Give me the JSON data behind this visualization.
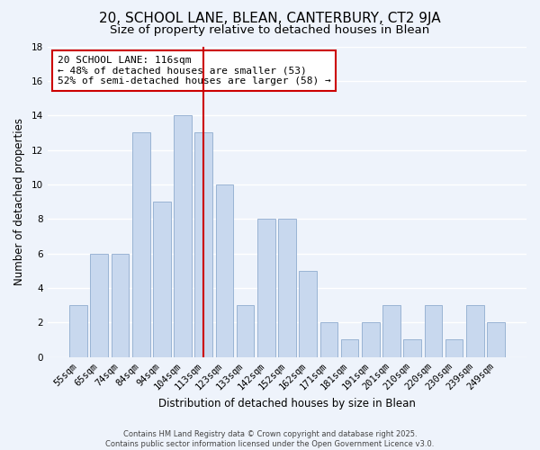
{
  "title": "20, SCHOOL LANE, BLEAN, CANTERBURY, CT2 9JA",
  "subtitle": "Size of property relative to detached houses in Blean",
  "xlabel": "Distribution of detached houses by size in Blean",
  "ylabel": "Number of detached properties",
  "categories": [
    "55sqm",
    "65sqm",
    "74sqm",
    "84sqm",
    "94sqm",
    "104sqm",
    "113sqm",
    "123sqm",
    "133sqm",
    "142sqm",
    "152sqm",
    "162sqm",
    "171sqm",
    "181sqm",
    "191sqm",
    "201sqm",
    "210sqm",
    "220sqm",
    "230sqm",
    "239sqm",
    "249sqm"
  ],
  "values": [
    3,
    6,
    6,
    13,
    9,
    14,
    13,
    10,
    3,
    8,
    8,
    5,
    2,
    1,
    2,
    3,
    1,
    3,
    1,
    3,
    2
  ],
  "bar_color": "#c8d8ee",
  "bar_edge_color": "#9ab4d4",
  "vline_index": 6,
  "vline_color": "#cc0000",
  "ylim": [
    0,
    18
  ],
  "yticks": [
    0,
    2,
    4,
    6,
    8,
    10,
    12,
    14,
    16,
    18
  ],
  "background_color": "#eef3fb",
  "grid_color": "#ffffff",
  "annotation_title": "20 SCHOOL LANE: 116sqm",
  "annotation_line1": "← 48% of detached houses are smaller (53)",
  "annotation_line2": "52% of semi-detached houses are larger (58) →",
  "annotation_box_facecolor": "#ffffff",
  "annotation_box_edgecolor": "#cc0000",
  "footer1": "Contains HM Land Registry data © Crown copyright and database right 2025.",
  "footer2": "Contains public sector information licensed under the Open Government Licence v3.0.",
  "title_fontsize": 11,
  "subtitle_fontsize": 9.5,
  "axis_label_fontsize": 8.5,
  "tick_fontsize": 7.5,
  "annotation_fontsize": 8,
  "footer_fontsize": 6
}
